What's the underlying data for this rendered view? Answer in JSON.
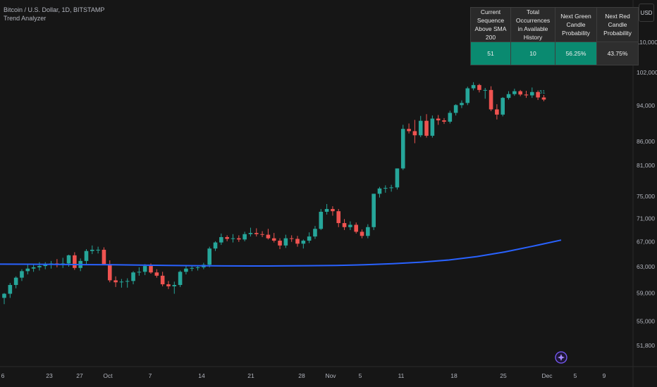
{
  "header": {
    "symbol_line": "Bitcoin / U.S. Dollar, 1D, BITSTAMP",
    "indicator": "Trend Analyzer"
  },
  "currency_button": "USD",
  "table": {
    "headers": [
      [
        "Current Sequence",
        "Above SMA 200"
      ],
      [
        "Total Occurrences",
        "in Available History"
      ],
      [
        "Next Green Candle",
        "Probability"
      ],
      [
        "Next Red Candle",
        "Probability"
      ]
    ],
    "values": [
      "51",
      "10",
      "56.25%",
      "43.75%"
    ]
  },
  "colors": {
    "background": "#161616",
    "up": "#26a69a",
    "down": "#ef5350",
    "sma": "#2962ff",
    "table_green": "#0a8a70",
    "table_dark": "#2e2e2e"
  },
  "chart_data": {
    "type": "candlestick",
    "y_axis": {
      "scale": "log",
      "ticks": [
        "110,000",
        "102,000",
        "94,000",
        "86,000",
        "81,000",
        "75,000",
        "71,000",
        "67,000",
        "63,000",
        "59,000",
        "55,000",
        "51,800"
      ],
      "visible_range": [
        49500,
        118000
      ]
    },
    "x_axis": {
      "ticks": [
        "6",
        "23",
        "27",
        "Oct",
        "7",
        "14",
        "21",
        "28",
        "Nov",
        "5",
        "11",
        "18",
        "25",
        "Dec",
        "5",
        "9"
      ]
    },
    "candles": [
      {
        "o": 58300,
        "h": 59000,
        "l": 57400,
        "c": 58900
      },
      {
        "o": 58900,
        "h": 60500,
        "l": 58300,
        "c": 60200
      },
      {
        "o": 60200,
        "h": 61500,
        "l": 59700,
        "c": 61300
      },
      {
        "o": 61300,
        "h": 62600,
        "l": 60800,
        "c": 62300
      },
      {
        "o": 62300,
        "h": 63300,
        "l": 61800,
        "c": 62700
      },
      {
        "o": 62700,
        "h": 63400,
        "l": 62200,
        "c": 62900
      },
      {
        "o": 62900,
        "h": 63700,
        "l": 62400,
        "c": 63100
      },
      {
        "o": 63100,
        "h": 63700,
        "l": 62600,
        "c": 63300
      },
      {
        "o": 63300,
        "h": 63900,
        "l": 62700,
        "c": 63500
      },
      {
        "o": 63500,
        "h": 64200,
        "l": 62900,
        "c": 63400
      },
      {
        "o": 63400,
        "h": 64400,
        "l": 62800,
        "c": 63500
      },
      {
        "o": 63500,
        "h": 64900,
        "l": 63000,
        "c": 64800
      },
      {
        "o": 64800,
        "h": 65300,
        "l": 62500,
        "c": 62800
      },
      {
        "o": 62800,
        "h": 64300,
        "l": 62300,
        "c": 63900
      },
      {
        "o": 63900,
        "h": 65800,
        "l": 63400,
        "c": 65500
      },
      {
        "o": 65500,
        "h": 66400,
        "l": 65000,
        "c": 65700
      },
      {
        "o": 65700,
        "h": 66200,
        "l": 65100,
        "c": 65700
      },
      {
        "o": 65700,
        "h": 66100,
        "l": 63300,
        "c": 63400
      },
      {
        "o": 63400,
        "h": 64000,
        "l": 60600,
        "c": 60900
      },
      {
        "o": 60900,
        "h": 61500,
        "l": 59900,
        "c": 60600
      },
      {
        "o": 60600,
        "h": 61100,
        "l": 59800,
        "c": 60700
      },
      {
        "o": 60700,
        "h": 61200,
        "l": 59800,
        "c": 60800
      },
      {
        "o": 60800,
        "h": 62300,
        "l": 60300,
        "c": 62100
      },
      {
        "o": 62100,
        "h": 62900,
        "l": 61600,
        "c": 62200
      },
      {
        "o": 62200,
        "h": 63400,
        "l": 61700,
        "c": 63100
      },
      {
        "o": 63100,
        "h": 63500,
        "l": 61900,
        "c": 62100
      },
      {
        "o": 62100,
        "h": 62600,
        "l": 61300,
        "c": 61600
      },
      {
        "o": 61600,
        "h": 62200,
        "l": 60000,
        "c": 60300
      },
      {
        "o": 60300,
        "h": 60800,
        "l": 59600,
        "c": 60000
      },
      {
        "o": 60000,
        "h": 60700,
        "l": 58900,
        "c": 60200
      },
      {
        "o": 60200,
        "h": 62400,
        "l": 59900,
        "c": 62200
      },
      {
        "o": 62200,
        "h": 63200,
        "l": 61800,
        "c": 62700
      },
      {
        "o": 62700,
        "h": 63100,
        "l": 62300,
        "c": 62800
      },
      {
        "o": 62800,
        "h": 63200,
        "l": 62400,
        "c": 62900
      },
      {
        "o": 62900,
        "h": 63600,
        "l": 62600,
        "c": 63300
      },
      {
        "o": 63300,
        "h": 66200,
        "l": 62900,
        "c": 65900
      },
      {
        "o": 65900,
        "h": 67100,
        "l": 65500,
        "c": 66900
      },
      {
        "o": 66900,
        "h": 68400,
        "l": 66500,
        "c": 67800
      },
      {
        "o": 67800,
        "h": 68100,
        "l": 67100,
        "c": 67500
      },
      {
        "o": 67500,
        "h": 68300,
        "l": 66900,
        "c": 67600
      },
      {
        "o": 67600,
        "h": 68100,
        "l": 67000,
        "c": 67400
      },
      {
        "o": 67400,
        "h": 68700,
        "l": 67100,
        "c": 68300
      },
      {
        "o": 68300,
        "h": 69400,
        "l": 67900,
        "c": 68500
      },
      {
        "o": 68500,
        "h": 69300,
        "l": 67900,
        "c": 68300
      },
      {
        "o": 68300,
        "h": 68800,
        "l": 67800,
        "c": 68200
      },
      {
        "o": 68200,
        "h": 69200,
        "l": 67400,
        "c": 67600
      },
      {
        "o": 67600,
        "h": 68500,
        "l": 66900,
        "c": 67200
      },
      {
        "o": 67200,
        "h": 67600,
        "l": 65800,
        "c": 66400
      },
      {
        "o": 66400,
        "h": 68200,
        "l": 66000,
        "c": 67600
      },
      {
        "o": 67600,
        "h": 68100,
        "l": 67000,
        "c": 67500
      },
      {
        "o": 67500,
        "h": 68000,
        "l": 66200,
        "c": 66700
      },
      {
        "o": 66700,
        "h": 67400,
        "l": 65900,
        "c": 67200
      },
      {
        "o": 67200,
        "h": 68600,
        "l": 66800,
        "c": 67900
      },
      {
        "o": 67900,
        "h": 69700,
        "l": 67500,
        "c": 69200
      },
      {
        "o": 69200,
        "h": 72700,
        "l": 69000,
        "c": 72200
      },
      {
        "o": 72200,
        "h": 73600,
        "l": 71700,
        "c": 72700
      },
      {
        "o": 72700,
        "h": 73200,
        "l": 71500,
        "c": 72300
      },
      {
        "o": 72300,
        "h": 72700,
        "l": 69500,
        "c": 70200
      },
      {
        "o": 70200,
        "h": 70900,
        "l": 69000,
        "c": 69500
      },
      {
        "o": 69500,
        "h": 70500,
        "l": 69000,
        "c": 69900
      },
      {
        "o": 69900,
        "h": 70300,
        "l": 68400,
        "c": 68700
      },
      {
        "o": 68700,
        "h": 69100,
        "l": 67600,
        "c": 68000
      },
      {
        "o": 68000,
        "h": 70000,
        "l": 67600,
        "c": 69500
      },
      {
        "o": 69500,
        "h": 75500,
        "l": 69000,
        "c": 75500
      },
      {
        "o": 75500,
        "h": 76800,
        "l": 74800,
        "c": 76500
      },
      {
        "o": 76500,
        "h": 77100,
        "l": 75700,
        "c": 76600
      },
      {
        "o": 76600,
        "h": 77200,
        "l": 75900,
        "c": 76700
      },
      {
        "o": 76700,
        "h": 80400,
        "l": 76300,
        "c": 80400
      },
      {
        "o": 80400,
        "h": 89600,
        "l": 80100,
        "c": 88700
      },
      {
        "o": 88700,
        "h": 89900,
        "l": 87700,
        "c": 88200
      },
      {
        "o": 88200,
        "h": 90700,
        "l": 85600,
        "c": 87300
      },
      {
        "o": 87300,
        "h": 91600,
        "l": 86900,
        "c": 90500
      },
      {
        "o": 90500,
        "h": 92000,
        "l": 86800,
        "c": 87200
      },
      {
        "o": 87200,
        "h": 91700,
        "l": 86800,
        "c": 91000
      },
      {
        "o": 91000,
        "h": 91800,
        "l": 89600,
        "c": 90600
      },
      {
        "o": 90600,
        "h": 91100,
        "l": 89800,
        "c": 90300
      },
      {
        "o": 90300,
        "h": 92800,
        "l": 89900,
        "c": 92300
      },
      {
        "o": 92300,
        "h": 94300,
        "l": 91700,
        "c": 94100
      },
      {
        "o": 94100,
        "h": 95200,
        "l": 93400,
        "c": 94600
      },
      {
        "o": 94600,
        "h": 98500,
        "l": 94100,
        "c": 98100
      },
      {
        "o": 98100,
        "h": 99600,
        "l": 97600,
        "c": 98900
      },
      {
        "o": 98900,
        "h": 99200,
        "l": 97100,
        "c": 97700
      },
      {
        "o": 97700,
        "h": 98200,
        "l": 95600,
        "c": 97700
      },
      {
        "o": 97700,
        "h": 98600,
        "l": 92700,
        "c": 93100
      },
      {
        "o": 93100,
        "h": 94300,
        "l": 90800,
        "c": 91900
      },
      {
        "o": 91900,
        "h": 96000,
        "l": 91500,
        "c": 95800
      },
      {
        "o": 95800,
        "h": 97400,
        "l": 95400,
        "c": 96700
      },
      {
        "o": 96700,
        "h": 98000,
        "l": 96300,
        "c": 97400
      },
      {
        "o": 97400,
        "h": 97700,
        "l": 96200,
        "c": 96600
      },
      {
        "o": 96600,
        "h": 97500,
        "l": 95800,
        "c": 96400
      },
      {
        "o": 96400,
        "h": 98300,
        "l": 95800,
        "c": 97200
      },
      {
        "o": 97200,
        "h": 97600,
        "l": 95300,
        "c": 95900
      },
      {
        "o": 95900,
        "h": 96500,
        "l": 95000,
        "c": 95400
      }
    ],
    "sma200": [
      63400,
      63380,
      63350,
      63320,
      63300,
      63250,
      63200,
      63150,
      63120,
      63110,
      63120,
      63150,
      63200,
      63300,
      63460,
      63700,
      64050,
      64600,
      65350,
      66300,
      67300
    ],
    "annotations": [
      "51"
    ]
  }
}
